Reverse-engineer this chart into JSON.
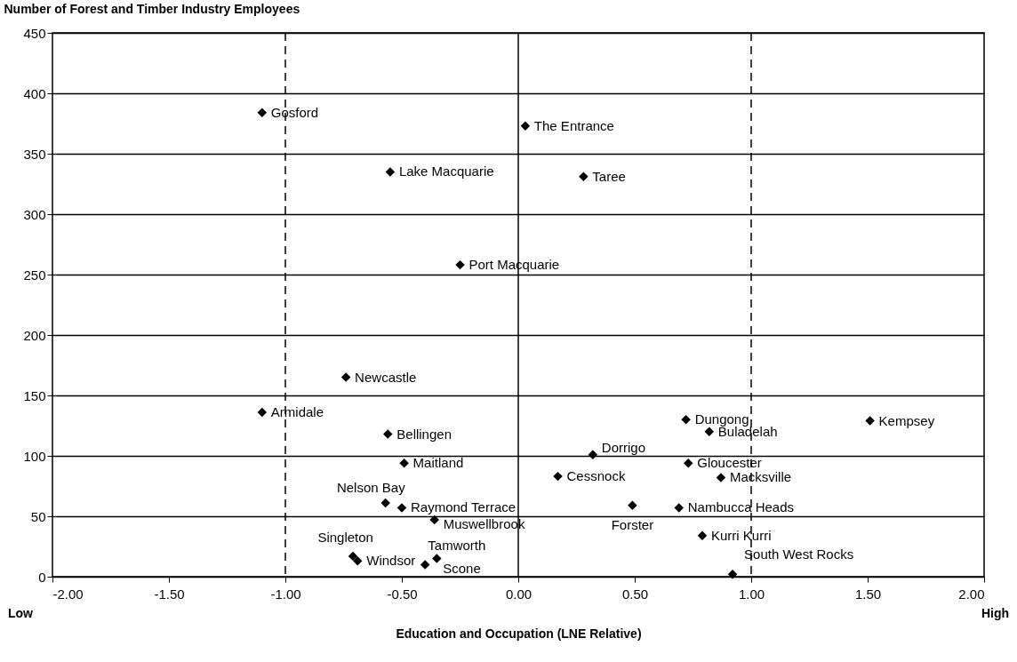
{
  "chart_data": {
    "type": "scatter",
    "xlabel": "Education and Occupation (LNE Relative)",
    "ylabel": "Number of Forest and Timber Industry Employees",
    "x": [
      -1.1,
      0.03,
      -0.55,
      0.28,
      -0.25,
      -0.74,
      -1.1,
      -0.56,
      -0.49,
      0.32,
      0.17,
      -0.57,
      -0.5,
      -0.36,
      -0.71,
      -0.69,
      -0.35,
      -0.4,
      0.72,
      0.82,
      1.51,
      0.73,
      0.87,
      0.49,
      0.69,
      0.79,
      0.92
    ],
    "values": [
      384,
      373,
      335,
      331,
      258,
      165,
      136,
      118,
      94,
      101,
      83,
      61,
      57,
      47,
      17,
      13,
      15,
      10,
      130,
      120,
      129,
      94,
      82,
      59,
      57,
      34,
      2
    ],
    "color": "#000000",
    "marker": "diamond",
    "grid": "y",
    "xlim": [
      -2,
      2
    ],
    "ylim": [
      0,
      450
    ],
    "xticks": [
      {
        "value": -2,
        "label": "-2.00"
      },
      {
        "value": -1.5,
        "label": "-1.50"
      },
      {
        "value": -1,
        "label": "-1.00"
      },
      {
        "value": -0.5,
        "label": "-0.50"
      },
      {
        "value": 0,
        "label": "0.00"
      },
      {
        "value": 0.5,
        "label": "0.50"
      },
      {
        "value": 1,
        "label": "1.00"
      },
      {
        "value": 1.5,
        "label": "1.50"
      },
      {
        "value": 2,
        "label": "2.00"
      }
    ],
    "yticks": [
      0,
      50,
      100,
      150,
      200,
      250,
      300,
      350,
      400,
      450
    ],
    "ref_lines": [
      {
        "axis": "x",
        "value": -1,
        "line_style": "dashed"
      },
      {
        "axis": "x",
        "value": 0,
        "line_style": "solid"
      },
      {
        "axis": "x",
        "value": 1,
        "line_style": "dashed"
      }
    ],
    "annotations": [
      {
        "text": "Gosford",
        "x": -1.1,
        "y": 384
      },
      {
        "text": "The Entrance",
        "x": 0.03,
        "y": 373
      },
      {
        "text": "Lake Macquarie",
        "x": -0.55,
        "y": 335
      },
      {
        "text": "Taree",
        "x": 0.28,
        "y": 331
      },
      {
        "text": "Port Macquarie",
        "x": -0.25,
        "y": 258
      },
      {
        "text": "Newcastle",
        "x": -0.74,
        "y": 165
      },
      {
        "text": "Armidale",
        "x": -1.1,
        "y": 136
      },
      {
        "text": "Bellingen",
        "x": -0.56,
        "y": 118
      },
      {
        "text": "Maitland",
        "x": -0.49,
        "y": 94
      },
      {
        "text": "Dorrigo",
        "x": 0.32,
        "y": 101
      },
      {
        "text": "Cessnock",
        "x": 0.17,
        "y": 83
      },
      {
        "text": "Nelson Bay",
        "x": -0.57,
        "y": 61
      },
      {
        "text": "Raymond Terrace",
        "x": -0.5,
        "y": 57
      },
      {
        "text": "Muswellbrook",
        "x": -0.36,
        "y": 47
      },
      {
        "text": "Singleton",
        "x": -0.71,
        "y": 17
      },
      {
        "text": "Windsor",
        "x": -0.69,
        "y": 13
      },
      {
        "text": "Tamworth",
        "x": -0.35,
        "y": 15
      },
      {
        "text": "Scone",
        "x": -0.4,
        "y": 10
      },
      {
        "text": "Dungong",
        "x": 0.72,
        "y": 130
      },
      {
        "text": "Buladelah",
        "x": 0.82,
        "y": 120
      },
      {
        "text": "Kempsey",
        "x": 1.51,
        "y": 129
      },
      {
        "text": "Gloucester",
        "x": 0.73,
        "y": 94
      },
      {
        "text": "Macksville",
        "x": 0.87,
        "y": 82
      },
      {
        "text": "Forster",
        "x": 0.49,
        "y": 59
      },
      {
        "text": "Nambucca Heads",
        "x": 0.69,
        "y": 57
      },
      {
        "text": "Kurri Kurri",
        "x": 0.79,
        "y": 34
      },
      {
        "text": "South West Rocks",
        "x": 0.92,
        "y": 2
      },
      "Low",
      "High"
    ]
  }
}
